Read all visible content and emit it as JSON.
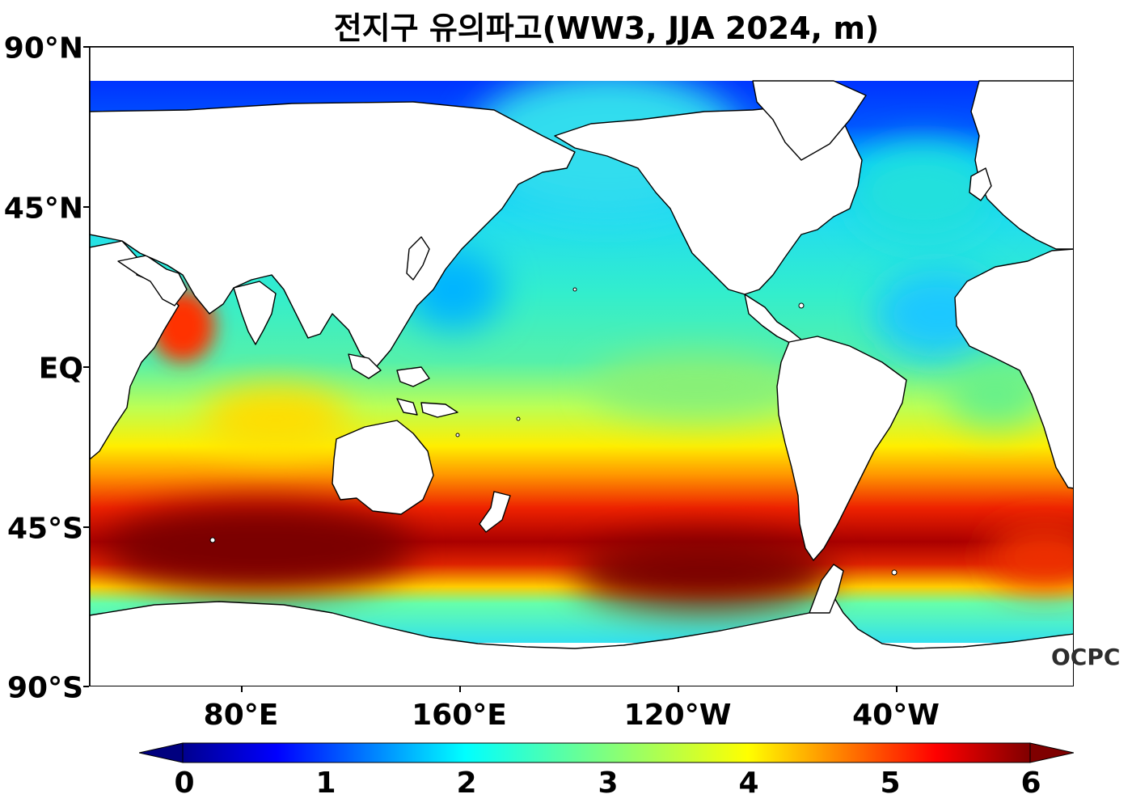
{
  "map": {
    "title": "전지구 유의파고(WW3, JJA 2024, m)",
    "lat_labels": [
      "90°N",
      "45°N",
      "EQ",
      "45°S",
      "90°S"
    ],
    "lon_labels": [
      "80°E",
      "160°E",
      "120°W",
      "40°W"
    ],
    "watermark": "OCPC",
    "variable": "significant wave height",
    "units": "m",
    "colormap": "jet",
    "colorbar": {
      "min": 0,
      "max": 6,
      "ticks": [
        "0",
        "1",
        "2",
        "3",
        "4",
        "5",
        "6"
      ],
      "extend": "both",
      "colors": [
        "#00007f",
        "#0000ff",
        "#007fff",
        "#00ffff",
        "#7fff7f",
        "#ffff00",
        "#ff7f00",
        "#ff0000",
        "#7f0000"
      ]
    },
    "land_color": "#ffffff",
    "coastline_color": "#000000"
  }
}
